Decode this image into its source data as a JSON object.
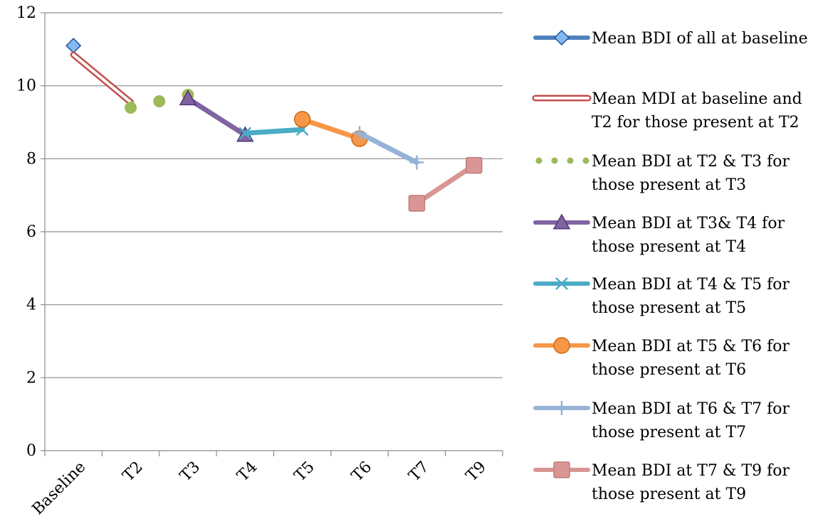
{
  "chart_data": {
    "type": "line",
    "title": "",
    "xlabel": "",
    "ylabel": "",
    "categories": [
      "Baseline",
      "T2",
      "T3",
      "T4",
      "T5",
      "T6",
      "T7",
      "T9"
    ],
    "ylim": [
      0,
      12
    ],
    "yticks": [
      0,
      2,
      4,
      6,
      8,
      10,
      12
    ],
    "grid": "horizontal",
    "legend_position": "right",
    "series": [
      {
        "name": "Mean BDI of all at baseline",
        "legend_lines": [
          "Mean BDI of all at baseline"
        ],
        "color": "#4F81BD",
        "style": "solid",
        "marker": "diamond",
        "points": [
          {
            "x": "Baseline",
            "y": 11.1
          }
        ]
      },
      {
        "name": "Mean MDI at baseline and T2 for those present at T2",
        "legend_lines": [
          "Mean MDI at baseline and",
          "T2 for those present at T2"
        ],
        "color": "#C0504D",
        "style": "hollow",
        "marker": "none",
        "points": [
          {
            "x": "Baseline",
            "y": 10.85
          },
          {
            "x": "T2",
            "y": 9.55
          }
        ]
      },
      {
        "name": "Mean BDI at T2 & T3 for those present at T3",
        "legend_lines": [
          "Mean BDI at T2 & T3 for",
          "those present at T3"
        ],
        "color": "#9BBB59",
        "style": "dotted",
        "marker": "none",
        "points": [
          {
            "x": "T2",
            "y": 9.4
          },
          {
            "x": "T3",
            "y": 9.75
          }
        ]
      },
      {
        "name": "Mean BDI at T3& T4 for those present at T4",
        "legend_lines": [
          "Mean BDI at T3& T4 for",
          "those present at T4"
        ],
        "color": "#8064A2",
        "style": "solid",
        "marker": "triangle",
        "points": [
          {
            "x": "T3",
            "y": 9.65
          },
          {
            "x": "T4",
            "y": 8.65
          }
        ]
      },
      {
        "name": "Mean BDI at T4 & T5 for those present at T5",
        "legend_lines": [
          "Mean BDI at T4 & T5 for",
          "those present at T5"
        ],
        "color": "#4BACC6",
        "style": "solid",
        "marker": "x",
        "points": [
          {
            "x": "T4",
            "y": 8.7
          },
          {
            "x": "T5",
            "y": 8.8
          }
        ]
      },
      {
        "name": "Mean BDI at T5 & T6 for those present at T6",
        "legend_lines": [
          "Mean BDI at T5 & T6 for",
          "those present at T6"
        ],
        "color": "#F79646",
        "style": "solid",
        "marker": "circle",
        "points": [
          {
            "x": "T5",
            "y": 9.08
          },
          {
            "x": "T6",
            "y": 8.55
          }
        ]
      },
      {
        "name": "Mean BDI at T6 & T7 for those present at T7",
        "legend_lines": [
          "Mean BDI at T6 & T7 for",
          "those present at T7"
        ],
        "color": "#95B3D7",
        "style": "solid",
        "marker": "plus",
        "points": [
          {
            "x": "T6",
            "y": 8.7
          },
          {
            "x": "T7",
            "y": 7.9
          }
        ]
      },
      {
        "name": "Mean BDI at T7 & T9 for those present at T9",
        "legend_lines": [
          "Mean BDI at T7 & T9 for",
          "those present at T9"
        ],
        "color": "#D99694",
        "style": "solid",
        "marker": "square",
        "points": [
          {
            "x": "T7",
            "y": 6.78
          },
          {
            "x": "T9",
            "y": 7.82
          }
        ]
      }
    ]
  }
}
